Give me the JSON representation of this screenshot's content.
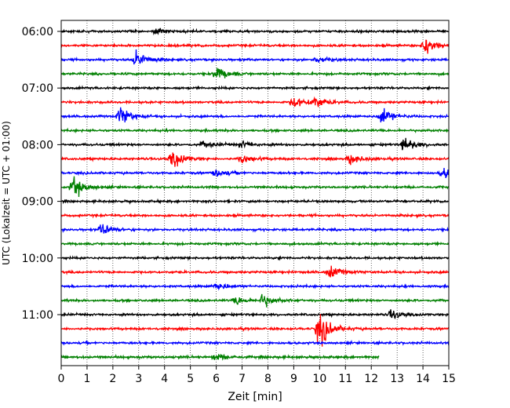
{
  "chart_data": {
    "type": "line",
    "title": "",
    "xlabel": "Zeit  [min]",
    "ylabel": "UTC (Lokalzeit = UTC + 01:00)",
    "xlim": [
      0,
      15
    ],
    "xticks": [
      "0",
      "1",
      "2",
      "3",
      "4",
      "5",
      "6",
      "7",
      "8",
      "9",
      "10",
      "11",
      "12",
      "13",
      "14",
      "15"
    ],
    "grid": "vertical dotted at each minute",
    "y_tick_labels": [
      {
        "label": "06:00",
        "row": 0
      },
      {
        "label": "07:00",
        "row": 4
      },
      {
        "label": "08:00",
        "row": 8
      },
      {
        "label": "09:00",
        "row": 12
      },
      {
        "label": "10:00",
        "row": 16
      },
      {
        "label": "11:00",
        "row": 20
      }
    ],
    "trace_colors": [
      "#000000",
      "#ff0000",
      "#0000ff",
      "#008000"
    ],
    "rows_minutes_per_trace": 15,
    "traces": [
      {
        "start": "06:00",
        "color": "#000000",
        "end_min": 15,
        "events": [
          {
            "t": 3.7,
            "amp": 0.3
          }
        ]
      },
      {
        "start": "06:15",
        "color": "#ff0000",
        "end_min": 15,
        "events": [
          {
            "t": 14.1,
            "amp": 0.9
          }
        ]
      },
      {
        "start": "06:30",
        "color": "#0000ff",
        "end_min": 15,
        "events": [
          {
            "t": 2.9,
            "amp": 0.8
          },
          {
            "t": 9.9,
            "amp": 0.4
          }
        ]
      },
      {
        "start": "06:45",
        "color": "#008000",
        "end_min": 15,
        "events": [
          {
            "t": 6.0,
            "amp": 0.7
          }
        ]
      },
      {
        "start": "07:00",
        "color": "#000000",
        "end_min": 15,
        "events": []
      },
      {
        "start": "07:15",
        "color": "#ff0000",
        "end_min": 15,
        "events": [
          {
            "t": 9.0,
            "amp": 0.5
          },
          {
            "t": 9.8,
            "amp": 0.6
          }
        ]
      },
      {
        "start": "07:30",
        "color": "#0000ff",
        "end_min": 15,
        "events": [
          {
            "t": 2.3,
            "amp": 0.9
          },
          {
            "t": 12.4,
            "amp": 0.9
          }
        ]
      },
      {
        "start": "07:45",
        "color": "#008000",
        "end_min": 15,
        "events": []
      },
      {
        "start": "08:00",
        "color": "#000000",
        "end_min": 15,
        "events": [
          {
            "t": 5.5,
            "amp": 0.3
          },
          {
            "t": 7.0,
            "amp": 0.3
          },
          {
            "t": 13.3,
            "amp": 0.7
          }
        ]
      },
      {
        "start": "08:15",
        "color": "#ff0000",
        "end_min": 15,
        "events": [
          {
            "t": 4.3,
            "amp": 0.9
          },
          {
            "t": 7.0,
            "amp": 0.4
          },
          {
            "t": 11.2,
            "amp": 0.5
          }
        ]
      },
      {
        "start": "08:30",
        "color": "#0000ff",
        "end_min": 15,
        "events": [
          {
            "t": 6.0,
            "amp": 0.4
          },
          {
            "t": 14.8,
            "amp": 0.5
          }
        ]
      },
      {
        "start": "08:45",
        "color": "#008000",
        "end_min": 15,
        "events": [
          {
            "t": 0.5,
            "amp": 0.9
          }
        ]
      },
      {
        "start": "09:00",
        "color": "#000000",
        "end_min": 15,
        "events": []
      },
      {
        "start": "09:15",
        "color": "#ff0000",
        "end_min": 15,
        "events": []
      },
      {
        "start": "09:30",
        "color": "#0000ff",
        "end_min": 15,
        "events": [
          {
            "t": 1.6,
            "amp": 0.6
          }
        ]
      },
      {
        "start": "09:45",
        "color": "#008000",
        "end_min": 15,
        "events": []
      },
      {
        "start": "10:00",
        "color": "#000000",
        "end_min": 15,
        "events": []
      },
      {
        "start": "10:15",
        "color": "#ff0000",
        "end_min": 15,
        "events": [
          {
            "t": 10.4,
            "amp": 0.6
          }
        ]
      },
      {
        "start": "10:30",
        "color": "#0000ff",
        "end_min": 15,
        "events": [
          {
            "t": 6.0,
            "amp": 0.4
          }
        ]
      },
      {
        "start": "10:45",
        "color": "#008000",
        "end_min": 15,
        "events": [
          {
            "t": 6.8,
            "amp": 0.4
          },
          {
            "t": 7.8,
            "amp": 0.6
          }
        ]
      },
      {
        "start": "11:00",
        "color": "#000000",
        "end_min": 15,
        "events": [
          {
            "t": 12.8,
            "amp": 0.4
          }
        ]
      },
      {
        "start": "11:15",
        "color": "#ff0000",
        "end_min": 15,
        "events": [
          {
            "t": 10.0,
            "amp": 1.6
          }
        ]
      },
      {
        "start": "11:30",
        "color": "#0000ff",
        "end_min": 15,
        "events": []
      },
      {
        "start": "11:45",
        "color": "#008000",
        "end_min": 12.3,
        "events": [
          {
            "t": 6.0,
            "amp": 0.3
          }
        ]
      }
    ]
  }
}
